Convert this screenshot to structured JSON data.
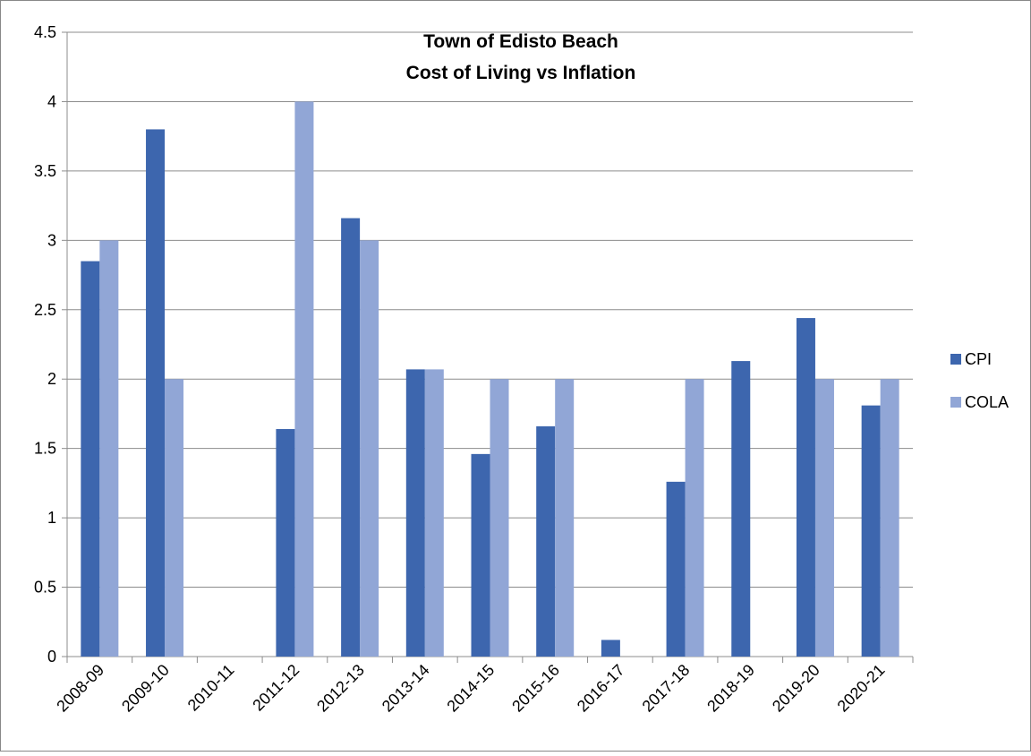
{
  "chart_data": {
    "type": "bar",
    "title_lines": [
      "Town of Edisto Beach",
      "Cost of Living vs Inflation"
    ],
    "categories": [
      "2008-09",
      "2009-10",
      "2010-11",
      "2011-12",
      "2012-13",
      "2013-14",
      "2014-15",
      "2015-16",
      "2016-17",
      "2017-18",
      "2018-19",
      "2019-20",
      "2020-21"
    ],
    "series": [
      {
        "name": "CPI",
        "color": "#3d66ae",
        "values": [
          2.85,
          3.8,
          0,
          1.64,
          3.16,
          2.07,
          1.46,
          1.66,
          0.12,
          1.26,
          2.13,
          2.44,
          1.81
        ]
      },
      {
        "name": "COLA",
        "color": "#91a6d6",
        "values": [
          3,
          2,
          0,
          4,
          3,
          2.07,
          2,
          2,
          0,
          2,
          0,
          2,
          2
        ]
      }
    ],
    "ylim": [
      0,
      4.5
    ],
    "yticks": [
      "0",
      "0.5",
      "1",
      "1.5",
      "2",
      "2.5",
      "3",
      "3.5",
      "4",
      "4.5"
    ],
    "grid": true,
    "legend_position": "right",
    "xlabel": "",
    "ylabel": ""
  }
}
